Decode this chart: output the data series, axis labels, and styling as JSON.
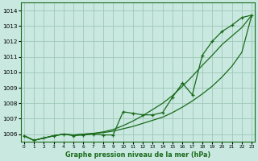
{
  "xlabel": "Graphe pression niveau de la mer (hPa)",
  "ylim": [
    1005.5,
    1014.5
  ],
  "xlim": [
    -0.3,
    23.3
  ],
  "yticks": [
    1006,
    1007,
    1008,
    1009,
    1010,
    1011,
    1012,
    1013,
    1014
  ],
  "xticks": [
    0,
    1,
    2,
    3,
    4,
    5,
    6,
    7,
    8,
    9,
    10,
    11,
    12,
    13,
    14,
    15,
    16,
    17,
    18,
    19,
    20,
    21,
    22,
    23
  ],
  "bg_color": "#c8e8e0",
  "grid_color": "#a0c8b8",
  "line_color": "#1a6b1a",
  "line_marked": [
    1005.9,
    1005.6,
    1005.75,
    1005.9,
    1006.0,
    1005.9,
    1005.95,
    1006.0,
    1005.95,
    1005.95,
    1007.45,
    1007.35,
    1007.25,
    1007.25,
    1007.4,
    1008.4,
    1009.3,
    1008.55,
    1011.1,
    1012.0,
    1012.65,
    1013.05,
    1013.55,
    1013.7
  ],
  "line_smooth_low": [
    1005.9,
    1005.6,
    1005.75,
    1005.9,
    1006.0,
    1005.95,
    1006.0,
    1006.05,
    1006.1,
    1006.2,
    1006.35,
    1006.5,
    1006.7,
    1006.9,
    1007.1,
    1007.4,
    1007.75,
    1008.15,
    1008.6,
    1009.1,
    1009.7,
    1010.4,
    1011.3,
    1013.7
  ],
  "line_smooth_high": [
    1005.9,
    1005.6,
    1005.75,
    1005.9,
    1006.0,
    1005.95,
    1006.0,
    1006.05,
    1006.15,
    1006.3,
    1006.55,
    1006.85,
    1007.2,
    1007.6,
    1008.0,
    1008.5,
    1009.1,
    1009.75,
    1010.45,
    1011.1,
    1011.8,
    1012.35,
    1012.9,
    1013.7
  ]
}
